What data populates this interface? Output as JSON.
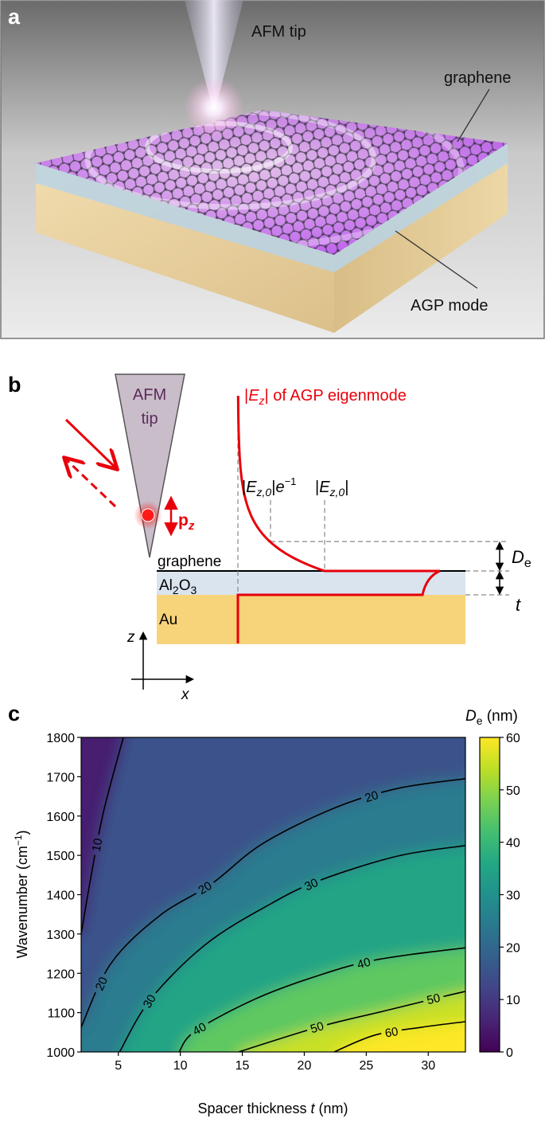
{
  "panel_a": {
    "label": "a",
    "tip_label": "AFM tip",
    "graphene_label": "graphene",
    "mode_label": "AGP mode"
  },
  "panel_b": {
    "label": "b",
    "tip": [
      "AFM",
      "tip"
    ],
    "field_label": [
      "|",
      "E",
      "z",
      "| of AGP eigenmode"
    ],
    "decay_label": [
      "|",
      "E",
      "z,0",
      "|",
      "e",
      "−1"
    ],
    "peak_label": [
      "|",
      "E",
      "z,0",
      "|"
    ],
    "graphene": "graphene",
    "spacer": [
      "Al",
      "2",
      "O",
      "3"
    ],
    "metal": "Au",
    "dipole": [
      "p",
      "z"
    ],
    "axes": [
      "z",
      "x"
    ],
    "depth": [
      "D",
      "e"
    ],
    "thickness": "t"
  },
  "chart_data": {
    "type": "contour",
    "label": "c",
    "xlabel": [
      "Spacer thickness ",
      "t",
      " (nm)"
    ],
    "ylabel": [
      "Wavenumber (cm",
      "−1",
      ")"
    ],
    "xlim": [
      2,
      33
    ],
    "ylim": [
      1000,
      1800
    ],
    "xticks": [
      5,
      10,
      15,
      20,
      25,
      30
    ],
    "yticks": [
      1000,
      1100,
      1200,
      1300,
      1400,
      1500,
      1600,
      1700,
      1800
    ],
    "colormap": "viridis",
    "colorbar": {
      "label": [
        "D",
        "e",
        " (nm)"
      ],
      "lim": [
        0,
        60
      ],
      "ticks": [
        0,
        10,
        20,
        30,
        40,
        50,
        60
      ]
    },
    "contours": [
      {
        "level": 10,
        "x": [
          2,
          2.8,
          3.8,
          5.4
        ],
        "y": [
          1300,
          1448,
          1610,
          1800
        ]
      },
      {
        "level": 20,
        "x": [
          2,
          4.4,
          8.3,
          12.5,
          16.6,
          22.4,
          27.5,
          33
        ],
        "y": [
          1063,
          1225,
          1346,
          1427,
          1529,
          1620,
          1670,
          1695
        ]
      },
      {
        "level": 30,
        "x": [
          5.1,
          7.6,
          12.1,
          17.3,
          21.3,
          27.5,
          33
        ],
        "y": [
          1000,
          1134,
          1275,
          1377,
          1437,
          1498,
          1525
        ]
      },
      {
        "level": 40,
        "x": [
          9.9,
          11.2,
          16,
          21.1,
          25.9,
          33
        ],
        "y": [
          1000,
          1053,
          1134,
          1194,
          1235,
          1265
        ]
      },
      {
        "level": 50,
        "x": [
          14.7,
          21.1,
          26.3,
          31.1,
          33
        ],
        "y": [
          1000,
          1063,
          1103,
          1140,
          1154
        ]
      },
      {
        "level": 60,
        "x": [
          22.4,
          25.7,
          29.5,
          33
        ],
        "y": [
          1000,
          1043,
          1063,
          1077
        ]
      }
    ]
  }
}
